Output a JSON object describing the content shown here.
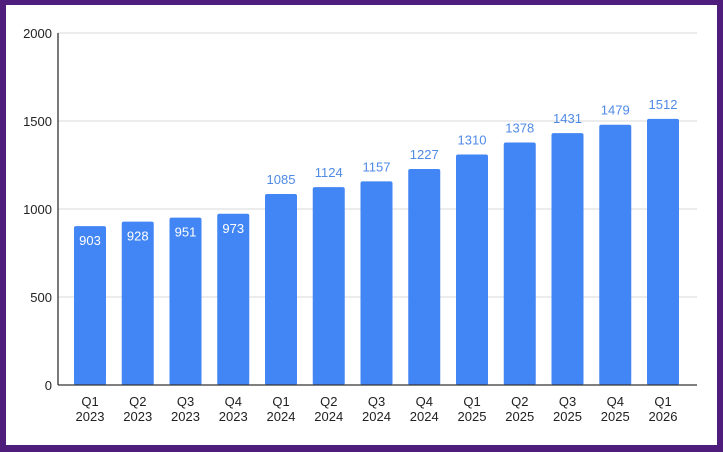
{
  "chart_data": {
    "type": "bar",
    "categories": [
      [
        "Q1",
        "2023"
      ],
      [
        "Q2",
        "2023"
      ],
      [
        "Q3",
        "2023"
      ],
      [
        "Q4",
        "2023"
      ],
      [
        "Q1",
        "2024"
      ],
      [
        "Q2",
        "2024"
      ],
      [
        "Q3",
        "2024"
      ],
      [
        "Q4",
        "2024"
      ],
      [
        "Q1",
        "2025"
      ],
      [
        "Q2",
        "2025"
      ],
      [
        "Q3",
        "2025"
      ],
      [
        "Q4",
        "2025"
      ],
      [
        "Q1",
        "2026"
      ]
    ],
    "values": [
      903,
      928,
      951,
      973,
      1085,
      1124,
      1157,
      1227,
      1310,
      1378,
      1431,
      1479,
      1512
    ],
    "title": "",
    "xlabel": "",
    "ylabel": "",
    "ylim": [
      0,
      2000
    ],
    "yticks": [
      0,
      500,
      1000,
      1500,
      2000
    ],
    "grid": true,
    "legend": "none",
    "data_labels": true,
    "colors": {
      "bar": "#4285f4",
      "label_outside": "#4f8ae6",
      "label_inside": "#ffffff",
      "frame": "#4f1d7c"
    }
  }
}
